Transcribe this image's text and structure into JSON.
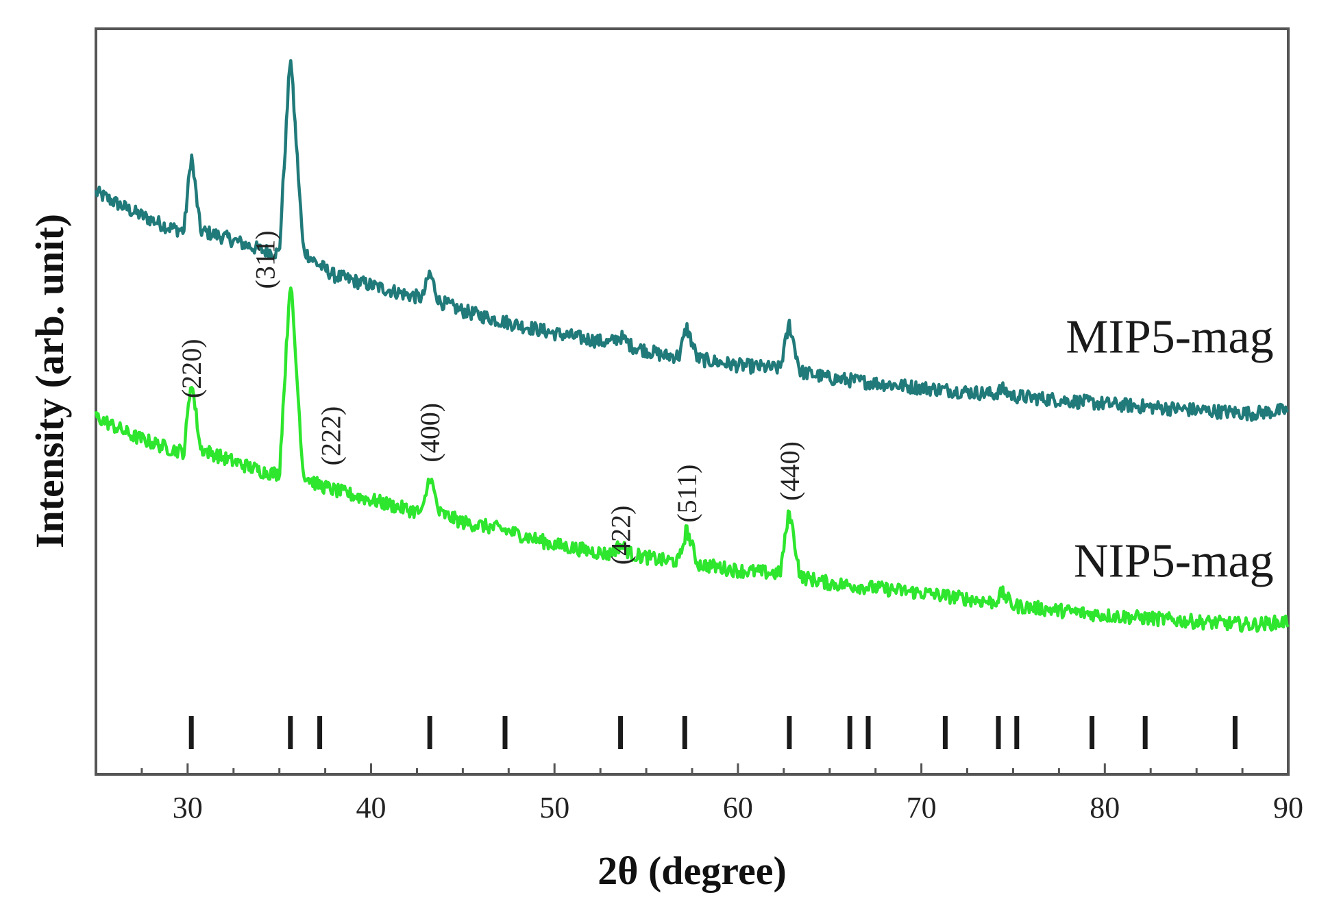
{
  "chart_data": {
    "type": "line",
    "title": "",
    "xlabel": "2θ (degree)",
    "ylabel": "Intensity (arb. unit)",
    "xlim": [
      25,
      90
    ],
    "ylim": [
      0,
      100
    ],
    "xticks": [
      30,
      40,
      50,
      60,
      70,
      80,
      90
    ],
    "yticks_shown": false,
    "grid": false,
    "series": [
      {
        "name": "MIP5-mag",
        "color": "#217a7a",
        "peaks": [
          30.2,
          35.6,
          43.2,
          53.6,
          57.2,
          62.8
        ],
        "points": [
          [
            25,
            78
          ],
          [
            27,
            75
          ],
          [
            29,
            72.5
          ],
          [
            29.8,
            72
          ],
          [
            30.2,
            84
          ],
          [
            30.7,
            72
          ],
          [
            32,
            71
          ],
          [
            34,
            69
          ],
          [
            35.0,
            68.5
          ],
          [
            35.6,
            100
          ],
          [
            36.3,
            69
          ],
          [
            37,
            67
          ],
          [
            38,
            65
          ],
          [
            40,
            63.5
          ],
          [
            42,
            62
          ],
          [
            42.8,
            61.5
          ],
          [
            43.2,
            65.5
          ],
          [
            43.7,
            61
          ],
          [
            45,
            59.5
          ],
          [
            47,
            58
          ],
          [
            50,
            56
          ],
          [
            53,
            54.5
          ],
          [
            53.6,
            55.5
          ],
          [
            54.2,
            54
          ],
          [
            56,
            52.5
          ],
          [
            56.8,
            52.5
          ],
          [
            57.2,
            57
          ],
          [
            57.8,
            52
          ],
          [
            60,
            51
          ],
          [
            62.3,
            50.5
          ],
          [
            62.8,
            57.5
          ],
          [
            63.4,
            50
          ],
          [
            65,
            49
          ],
          [
            70,
            47.5
          ],
          [
            74,
            46.5
          ],
          [
            74.4,
            47.3
          ],
          [
            75,
            46.2
          ],
          [
            80,
            45
          ],
          [
            85,
            44
          ],
          [
            88,
            43.5
          ],
          [
            90,
            44
          ]
        ]
      },
      {
        "name": "NIP5-mag",
        "color": "#2ee62e",
        "peaks": [
          30.2,
          35.6,
          43.2,
          53.6,
          57.2,
          62.8,
          74.4
        ],
        "points": [
          [
            25,
            43
          ],
          [
            27,
            40
          ],
          [
            29,
            38
          ],
          [
            29.8,
            37.5
          ],
          [
            30.2,
            49
          ],
          [
            30.7,
            38
          ],
          [
            32,
            36.5
          ],
          [
            34,
            34.5
          ],
          [
            35.0,
            34
          ],
          [
            35.6,
            65
          ],
          [
            36.3,
            34
          ],
          [
            37,
            32.5
          ],
          [
            38,
            31.5
          ],
          [
            40,
            30
          ],
          [
            42,
            28.5
          ],
          [
            42.8,
            28
          ],
          [
            43.2,
            34
          ],
          [
            43.7,
            28
          ],
          [
            45,
            26.5
          ],
          [
            47,
            25.5
          ],
          [
            50,
            23
          ],
          [
            53,
            21.5
          ],
          [
            53.6,
            23
          ],
          [
            54.2,
            21.5
          ],
          [
            56,
            20.5
          ],
          [
            56.8,
            20.5
          ],
          [
            57.2,
            25.5
          ],
          [
            57.8,
            20
          ],
          [
            60,
            19
          ],
          [
            62.3,
            18.5
          ],
          [
            62.8,
            28.5
          ],
          [
            63.4,
            18
          ],
          [
            65,
            17
          ],
          [
            70,
            15.5
          ],
          [
            74,
            14
          ],
          [
            74.4,
            15.5
          ],
          [
            75,
            13.5
          ],
          [
            80,
            12
          ],
          [
            85,
            11
          ],
          [
            88,
            10.5
          ],
          [
            90,
            11
          ]
        ]
      }
    ],
    "peak_labels": [
      {
        "text": "(220)",
        "x": 30.2,
        "y": 50.5
      },
      {
        "text": "(311)",
        "x": 34.2,
        "y": 67.5
      },
      {
        "text": "(222)",
        "x": 37.8,
        "y": 40
      },
      {
        "text": "(400)",
        "x": 43.2,
        "y": 40.5
      },
      {
        "text": "(422)",
        "x": 53.6,
        "y": 24.5
      },
      {
        "text": "(511)",
        "x": 57.2,
        "y": 31
      },
      {
        "text": "(440)",
        "x": 62.8,
        "y": 34.5
      }
    ],
    "reference_lines": [
      30.2,
      35.6,
      37.2,
      43.2,
      47.3,
      53.6,
      57.1,
      62.8,
      66.1,
      67.1,
      71.3,
      74.2,
      75.2,
      79.3,
      82.2,
      87.1
    ],
    "series_labels": [
      {
        "text": "MIP5-mag",
        "x": 89.2,
        "y": 53
      },
      {
        "text": "NIP5-mag",
        "x": 89.2,
        "y": 18
      }
    ]
  }
}
